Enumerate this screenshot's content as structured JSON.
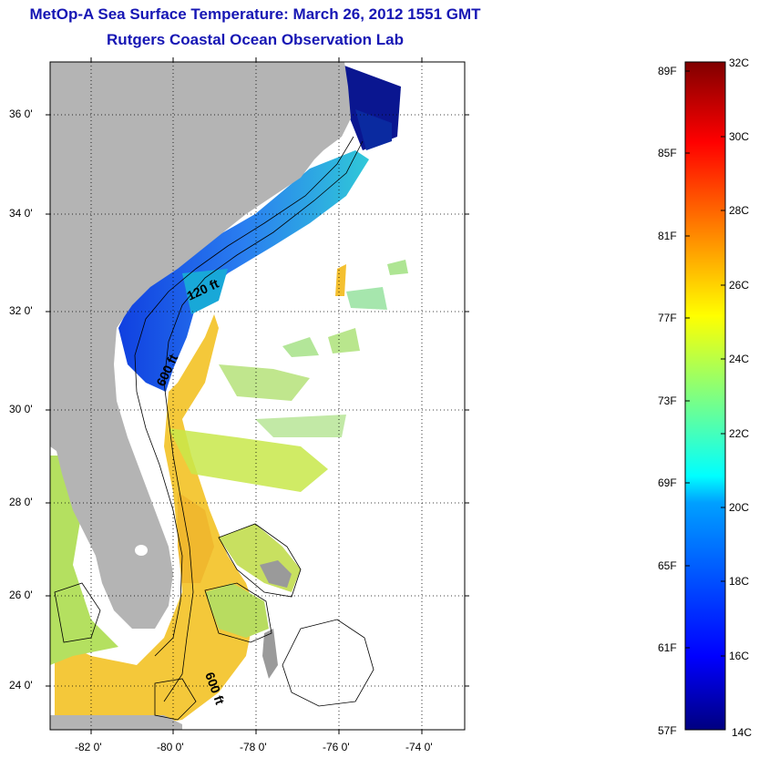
{
  "title": "MetOp-A Sea Surface Temperature:  March 26, 2012 1551 GMT",
  "subtitle": "Rutgers Coastal Ocean Observation Lab",
  "map": {
    "lat_labels": [
      "36 0'",
      "34 0'",
      "32 0'",
      "30 0'",
      "28 0'",
      "26 0'",
      "24 0'"
    ],
    "lon_labels": [
      "-82 0'",
      "-80 0'",
      "-78 0'",
      "-76 0'",
      "-74 0'"
    ],
    "lat_range": [
      23,
      37
    ],
    "lon_range": [
      -83,
      -73
    ],
    "contours": [
      {
        "label": "120 ft"
      },
      {
        "label": "600 ft"
      },
      {
        "label": "600 ft"
      }
    ],
    "land_color": "#b4b4b4",
    "missing_color": "#ffffff"
  },
  "colorbar": {
    "f_labels": [
      "89F",
      "85F",
      "81F",
      "77F",
      "73F",
      "69F",
      "65F",
      "61F",
      "57F"
    ],
    "c_labels": [
      "32C",
      "30C",
      "28C",
      "26C",
      "24C",
      "22C",
      "20C",
      "18C",
      "16C",
      "14C"
    ],
    "range_c": [
      14,
      32
    ],
    "colormap": "jet",
    "stops": [
      "#000080",
      "#0000ff",
      "#00a0ff",
      "#00ffff",
      "#80ff80",
      "#ffff00",
      "#ff8000",
      "#ff0000",
      "#800000"
    ]
  }
}
